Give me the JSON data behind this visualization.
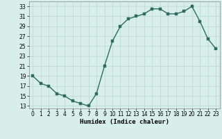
{
  "x": [
    0,
    1,
    2,
    3,
    4,
    5,
    6,
    7,
    8,
    9,
    10,
    11,
    12,
    13,
    14,
    15,
    16,
    17,
    18,
    19,
    20,
    21,
    22,
    23
  ],
  "y": [
    19,
    17.5,
    17,
    15.5,
    15,
    14,
    13.5,
    13,
    15.5,
    21,
    26,
    29,
    30.5,
    31,
    31.5,
    32.5,
    32.5,
    31.5,
    31.5,
    32,
    33,
    30,
    26.5,
    24.5
  ],
  "line_color": "#2d6b5e",
  "marker_color": "#2d6b5e",
  "bg_color": "#d8eeea",
  "grid_color": "#b8d8d2",
  "xlabel": "Humidex (Indice chaleur)",
  "ylim": [
    12.5,
    34
  ],
  "xlim": [
    -0.5,
    23.5
  ],
  "yticks": [
    13,
    15,
    17,
    19,
    21,
    23,
    25,
    27,
    29,
    31,
    33
  ],
  "xticks": [
    0,
    1,
    2,
    3,
    4,
    5,
    6,
    7,
    8,
    9,
    10,
    11,
    12,
    13,
    14,
    15,
    16,
    17,
    18,
    19,
    20,
    21,
    22,
    23
  ],
  "tick_fontsize": 5.5,
  "xlabel_fontsize": 6.5,
  "marker_size": 2.5,
  "line_width": 1.0
}
